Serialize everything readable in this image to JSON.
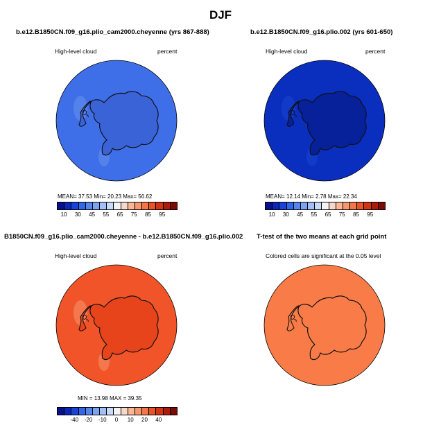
{
  "title": "DJF",
  "panels": [
    {
      "id": "top-left",
      "title": "b.e12.B1850CN.f09_g16.plio_cam2000.cheyenne (yrs 867-888)",
      "variable": "High-level cloud",
      "units": "percent",
      "stats": {
        "mean": "37.53",
        "min": "20.23",
        "max": "56.62",
        "text": "MEAN=   37.53   Min=   20.23   Max=   56.62"
      },
      "ocean_color": "#3f6fe8",
      "land_color": "#3a63d8",
      "patch_color": "#6f96ee"
    },
    {
      "id": "top-right",
      "title": "b.e12.B1850CN.f09_g16.plio.002 (yrs 601-650)",
      "variable": "High-level cloud",
      "units": "percent",
      "stats": {
        "mean": "12.14",
        "min": "2.78",
        "max": "22.34",
        "text": "MEAN=   12.14   Min=    2.78   Max=   22.34"
      },
      "ocean_color": "#0a2fbf",
      "land_color": "#06219a",
      "patch_color": "#1c48d0"
    },
    {
      "id": "bottom-left",
      "title": "B1850CN.f09_g16.plio_cam2000.cheyenne - b.e12.B1850CN.f09_g16.plio.002",
      "variable": "High-level cloud",
      "units": "percent",
      "stats": {
        "min": "13.98",
        "max": "39.35",
        "text": "MIN =   13.98  MAX =   39.35"
      },
      "ocean_color": "#f2542a",
      "land_color": "#e8441c",
      "patch_color": "#f7a17a"
    },
    {
      "id": "bottom-right",
      "title": "T-test of the two means at each grid point",
      "variable": "Colored cells are significant at the 0.05 level",
      "ocean_color": "#f97c48",
      "land_color": "#f97c48",
      "patch_color": "#f97c48"
    }
  ],
  "colorbar_abs": {
    "labels": [
      "10",
      "30",
      "45",
      "55",
      "65",
      "75",
      "85",
      "95"
    ],
    "colors": [
      "#08108a",
      "#0b26b8",
      "#1a44d8",
      "#3466e8",
      "#5486ee",
      "#7aa4f2",
      "#a2c0f5",
      "#c8daf8",
      "#f3f3f3",
      "#f9d7c8",
      "#f8b898",
      "#f59870",
      "#f07848",
      "#e65428",
      "#cf3414",
      "#ad1c0a",
      "#7e0a04"
    ]
  },
  "colorbar_diff": {
    "labels": [
      "-40",
      "-20",
      "-10",
      "0",
      "10",
      "20",
      "40"
    ],
    "colors": [
      "#08108a",
      "#0b26b8",
      "#1a44d8",
      "#3466e8",
      "#5486ee",
      "#7aa4f2",
      "#a2c0f5",
      "#c8daf8",
      "#f3f3f3",
      "#f9d7c8",
      "#f8b898",
      "#f59870",
      "#f07848",
      "#e65428",
      "#cf3414",
      "#ad1c0a",
      "#7e0a04"
    ]
  }
}
